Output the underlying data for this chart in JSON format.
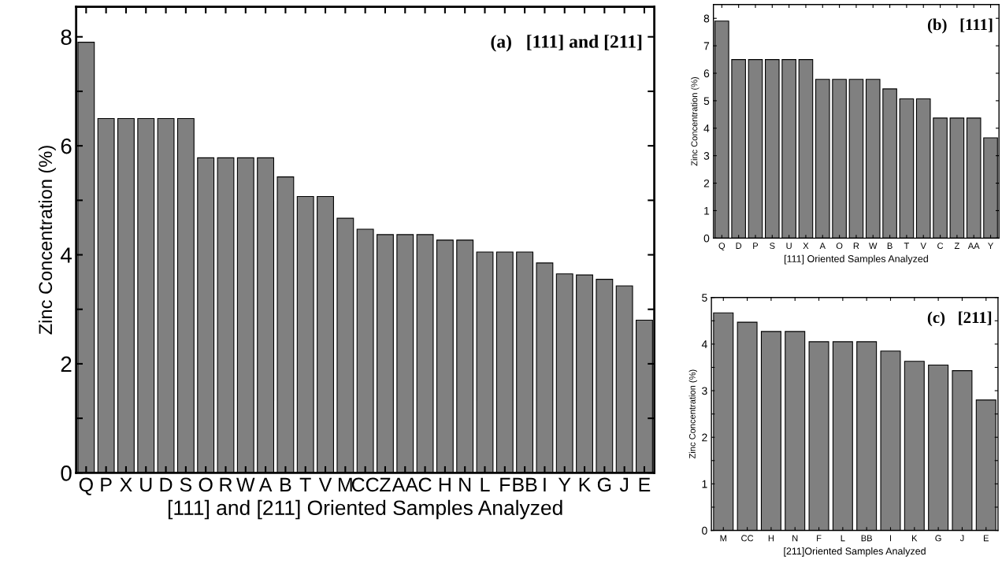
{
  "chart_data": [
    {
      "type": "bar",
      "title": "(a)   [111] and [211]",
      "xlabel": "[111] and [211] Oriented Samples Analyzed",
      "ylabel": "Zinc Concentration (%)",
      "categories": [
        "Q",
        "P",
        "X",
        "U",
        "D",
        "S",
        "O",
        "R",
        "W",
        "A",
        "B",
        "T",
        "V",
        "M",
        "CC",
        "Z",
        "AA",
        "C",
        "H",
        "N",
        "L",
        "F",
        "BB",
        "I",
        "Y",
        "K",
        "G",
        "J",
        "E"
      ],
      "values": [
        7.9,
        6.5,
        6.5,
        6.5,
        6.5,
        6.5,
        5.78,
        5.78,
        5.78,
        5.78,
        5.43,
        5.07,
        5.07,
        4.67,
        4.47,
        4.37,
        4.37,
        4.37,
        4.27,
        4.27,
        4.05,
        4.05,
        4.05,
        3.85,
        3.65,
        3.63,
        3.55,
        3.43,
        2.8
      ],
      "color": "#808080",
      "ylim": [
        0,
        8.55
      ],
      "yticks": [
        0,
        {
          "value": 1,
          "label": null
        },
        2,
        {
          "value": 3,
          "label": null
        },
        4,
        {
          "value": 5,
          "label": null
        },
        6,
        {
          "value": 7,
          "label": null
        },
        8
      ],
      "grid": false,
      "legend": false
    },
    {
      "type": "bar",
      "title": "(b)   [111]",
      "xlabel": "[111] Oriented Samples Analyzed",
      "ylabel": "Zinc Concentration (%)",
      "categories": [
        "Q",
        "D",
        "P",
        "S",
        "U",
        "X",
        "A",
        "O",
        "R",
        "W",
        "B",
        "T",
        "V",
        "C",
        "Z",
        "AA",
        "Y"
      ],
      "values": [
        7.9,
        6.5,
        6.5,
        6.5,
        6.5,
        6.5,
        5.78,
        5.78,
        5.78,
        5.78,
        5.43,
        5.07,
        5.07,
        4.37,
        4.37,
        4.37,
        3.65
      ],
      "color": "#808080",
      "ylim": [
        0,
        8.5
      ],
      "yticks": [
        0,
        1,
        2,
        3,
        4,
        5,
        6,
        7,
        8
      ],
      "grid": false,
      "legend": false
    },
    {
      "type": "bar",
      "title": "(c)   [211]",
      "xlabel": "[211]Oriented Samples Analyzed",
      "ylabel": "Zinc Concentration (%)",
      "categories": [
        "M",
        "CC",
        "H",
        "N",
        "F",
        "L",
        "BB",
        "I",
        "K",
        "G",
        "J",
        "E"
      ],
      "values": [
        4.67,
        4.47,
        4.27,
        4.27,
        4.05,
        4.05,
        4.05,
        3.85,
        3.63,
        3.55,
        3.43,
        2.8
      ],
      "color": "#808080",
      "ylim": [
        0,
        5
      ],
      "yticks": [
        0,
        {
          "value": 0.5,
          "label": null
        },
        1,
        {
          "value": 1.5,
          "label": null
        },
        2,
        {
          "value": 2.5,
          "label": null
        },
        3,
        {
          "value": 3.5,
          "label": null
        },
        4,
        {
          "value": 4.5,
          "label": null
        },
        5
      ],
      "grid": false,
      "legend": false
    }
  ]
}
